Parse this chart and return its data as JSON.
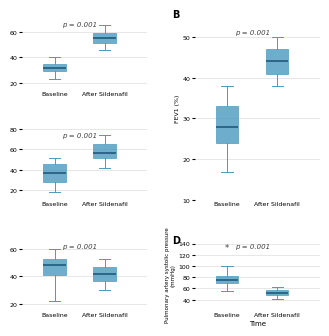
{
  "background_color": "#ffffff",
  "panels_left": [
    {
      "label": "",
      "pvalue": "p = 0.001",
      "baseline": {
        "med": 32,
        "q1": 29,
        "q3": 35,
        "whislo": 23,
        "whishi": 40
      },
      "after": {
        "med": 55,
        "q1": 51,
        "q3": 59,
        "whislo": 46,
        "whishi": 65
      },
      "ylim": [
        15,
        72
      ],
      "yticks": []
    },
    {
      "label": "",
      "pvalue": "p = 0.001",
      "baseline": {
        "med": 37,
        "q1": 28,
        "q3": 46,
        "whislo": 18,
        "whishi": 52
      },
      "after": {
        "med": 57,
        "q1": 52,
        "q3": 65,
        "whislo": 42,
        "whishi": 74
      },
      "ylim": [
        10,
        82
      ],
      "yticks": []
    },
    {
      "label": "",
      "pvalue": "p = 0.001",
      "baseline": {
        "med": 48,
        "q1": 41,
        "q3": 53,
        "whislo": 22,
        "whishi": 60
      },
      "after": {
        "med": 42,
        "q1": 37,
        "q3": 47,
        "whislo": 30,
        "whishi": 53
      },
      "ylim": [
        15,
        68
      ],
      "yticks": []
    }
  ],
  "panels_right": [
    {
      "label": "B",
      "pvalue": "p = 0.001",
      "ylabel": "FEV1 (%)",
      "baseline": {
        "med": 28,
        "q1": 24,
        "q3": 33,
        "whislo": 17,
        "whishi": 38
      },
      "after": {
        "med": 44,
        "q1": 41,
        "q3": 47,
        "whislo": 38,
        "whishi": 50
      },
      "ylim": [
        10,
        55
      ],
      "yticks": [
        10,
        20,
        30,
        40,
        50
      ],
      "ylabel_size": 4.5
    },
    {
      "label": "D",
      "pvalue": "p = 0.001",
      "pvalue2": "*",
      "ylabel": "Pulmonary artery systolic pressure\n(mmHg)",
      "xlabel": "Time",
      "baseline": {
        "med": 75,
        "q1": 70,
        "q3": 82,
        "whislo": 55,
        "whishi": 100
      },
      "after": {
        "med": 52,
        "q1": 48,
        "q3": 58,
        "whislo": 42,
        "whishi": 63
      },
      "ylim": [
        20,
        150
      ],
      "yticks": [
        40,
        60,
        80,
        100,
        120,
        140
      ],
      "ylabel_size": 4.0
    }
  ],
  "box_facecolor": "#5bacd4",
  "box_edgecolor": "#4a9ac0",
  "median_color": "#1a5276",
  "whisker_color": "#4a9ac0",
  "cap_color": "#4a9ac0",
  "grid_color": "#dddddd",
  "tick_fontsize": 4.5,
  "pvalue_fontsize": 5,
  "panel_label_fontsize": 7,
  "xlabel_fontsize": 5
}
